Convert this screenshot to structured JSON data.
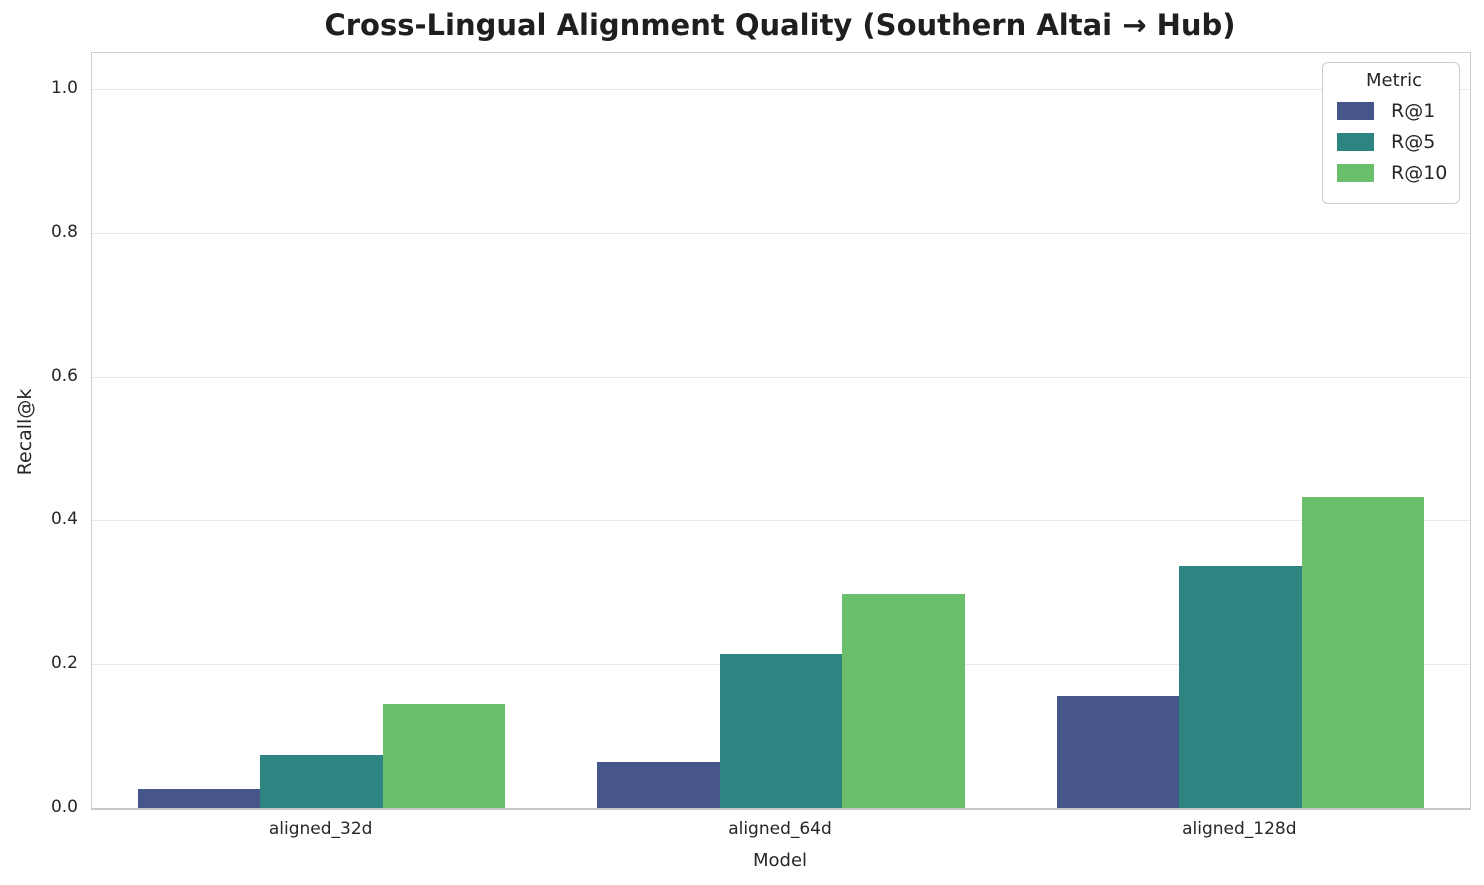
{
  "title": "Cross-Lingual Alignment Quality (Southern Altai → Hub)",
  "chart_data": {
    "type": "bar",
    "title": "Cross-Lingual Alignment Quality (Southern Altai → Hub)",
    "xlabel": "Model",
    "ylabel": "Recall@k",
    "categories": [
      "aligned_32d",
      "aligned_64d",
      "aligned_128d"
    ],
    "series": [
      {
        "name": "R@1",
        "color": "#46568B",
        "values": [
          0.026,
          0.064,
          0.156
        ]
      },
      {
        "name": "R@5",
        "color": "#2E8480",
        "values": [
          0.074,
          0.214,
          0.336
        ]
      },
      {
        "name": "R@10",
        "color": "#6BBE6C",
        "values": [
          0.145,
          0.297,
          0.432
        ]
      }
    ],
    "ylim": [
      0,
      1.05
    ],
    "yticks": [
      0.0,
      0.2,
      0.4,
      0.6,
      0.8,
      1.0
    ],
    "grid": true,
    "legend": {
      "title": "Metric",
      "position": "upper right"
    }
  },
  "colors": {
    "background": "#ffffff",
    "text": "#262626",
    "gridline": "#e9e9e9",
    "spine": "#cdcdcd"
  }
}
